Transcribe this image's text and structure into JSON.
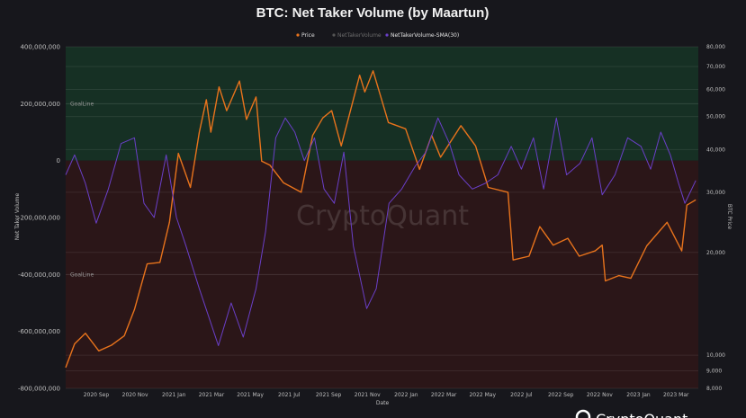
{
  "chart_data": {
    "type": "line",
    "title": "BTC: Net Taker Volume (by Maartun)",
    "xlabel": "Date",
    "ylabel_left": "Net Taker Volume",
    "ylabel_right": "BTC Price",
    "watermark": "CryptoQuant",
    "brand": "CryptoQuant",
    "legend": [
      {
        "name": "Price",
        "color": "#e8731c",
        "active": true
      },
      {
        "name": "NetTakerVolume",
        "color": "#555555",
        "active": false
      },
      {
        "name": "NetTakerVolume-SMA(30)",
        "color": "#6a3fc8",
        "active": true
      }
    ],
    "x_ticks": [
      "2020 Sep",
      "2020 Nov",
      "2021 Jan",
      "2021 Mar",
      "2021 May",
      "2021 Jul",
      "2021 Sep",
      "2021 Nov",
      "2022 Jan",
      "2022 Mar",
      "2022 May",
      "2022 Jul",
      "2022 Sep",
      "2022 Nov",
      "2023 Jan",
      "2023 Mar"
    ],
    "x_range": [
      "2020-07-15",
      "2023-04-05"
    ],
    "left_axis": {
      "ylim": [
        -800000000,
        400000000
      ],
      "ticks": [
        400000000,
        200000000,
        0,
        -200000000,
        -400000000,
        -600000000,
        -800000000
      ],
      "tick_labels": [
        "400,000,000",
        "200,000,000",
        "0",
        "-200,000,000",
        "-400,000,000",
        "-600,000,000",
        "-800,000,000"
      ]
    },
    "right_axis": {
      "scale": "log",
      "ylim": [
        8000,
        80000
      ],
      "ticks": [
        80000,
        70000,
        60000,
        50000,
        40000,
        30000,
        20000,
        10000,
        9000,
        8000
      ],
      "tick_labels": [
        "80,000",
        "70,000",
        "60,000",
        "50,000",
        "40,000",
        "30,000",
        "20,000",
        "10,000",
        "9,000",
        "8,000"
      ]
    },
    "goal_lines": [
      {
        "label": "GoalLine",
        "value": 200000000
      },
      {
        "label": "GoalLine",
        "value": -400000000
      }
    ],
    "zones": [
      {
        "from": 0,
        "to": 400000000,
        "color": "#163024"
      },
      {
        "from": -800000000,
        "to": 0,
        "color": "#2b1618"
      }
    ],
    "series": [
      {
        "name": "Price",
        "axis": "right",
        "color": "#e8731c",
        "points": [
          [
            "2020-07-15",
            9200
          ],
          [
            "2020-07-29",
            10800
          ],
          [
            "2020-08-15",
            11600
          ],
          [
            "2020-09-05",
            10300
          ],
          [
            "2020-09-25",
            10700
          ],
          [
            "2020-10-15",
            11400
          ],
          [
            "2020-10-31",
            13600
          ],
          [
            "2020-11-20",
            18500
          ],
          [
            "2020-12-10",
            18700
          ],
          [
            "2020-12-25",
            24500
          ],
          [
            "2021-01-08",
            39000
          ],
          [
            "2021-01-27",
            31000
          ],
          [
            "2021-02-10",
            45000
          ],
          [
            "2021-02-21",
            56000
          ],
          [
            "2021-02-28",
            45000
          ],
          [
            "2021-03-13",
            61000
          ],
          [
            "2021-03-25",
            52000
          ],
          [
            "2021-04-14",
            63500
          ],
          [
            "2021-04-25",
            49000
          ],
          [
            "2021-05-10",
            57000
          ],
          [
            "2021-05-19",
            37000
          ],
          [
            "2021-06-01",
            36000
          ],
          [
            "2021-06-22",
            32000
          ],
          [
            "2021-07-20",
            30000
          ],
          [
            "2021-08-07",
            44000
          ],
          [
            "2021-08-23",
            49500
          ],
          [
            "2021-09-06",
            52000
          ],
          [
            "2021-09-21",
            41000
          ],
          [
            "2021-10-20",
            66000
          ],
          [
            "2021-10-28",
            59000
          ],
          [
            "2021-11-10",
            68000
          ],
          [
            "2021-11-26",
            54000
          ],
          [
            "2021-12-04",
            48000
          ],
          [
            "2021-12-31",
            46000
          ],
          [
            "2022-01-22",
            35000
          ],
          [
            "2022-02-10",
            44000
          ],
          [
            "2022-02-24",
            38000
          ],
          [
            "2022-03-28",
            47000
          ],
          [
            "2022-04-20",
            41000
          ],
          [
            "2022-05-10",
            31000
          ],
          [
            "2022-06-10",
            30000
          ],
          [
            "2022-06-18",
            19000
          ],
          [
            "2022-07-13",
            19500
          ],
          [
            "2022-07-30",
            23800
          ],
          [
            "2022-08-20",
            21000
          ],
          [
            "2022-09-12",
            22000
          ],
          [
            "2022-09-30",
            19500
          ],
          [
            "2022-10-25",
            20200
          ],
          [
            "2022-11-05",
            21000
          ],
          [
            "2022-11-10",
            16500
          ],
          [
            "2022-12-01",
            17100
          ],
          [
            "2022-12-20",
            16800
          ],
          [
            "2023-01-14",
            20900
          ],
          [
            "2023-02-15",
            24500
          ],
          [
            "2023-03-10",
            20200
          ],
          [
            "2023-03-18",
            27500
          ],
          [
            "2023-04-01",
            28500
          ]
        ]
      },
      {
        "name": "NetTakerVolume-SMA(30)",
        "axis": "left",
        "color": "#6a3fc8",
        "points": [
          [
            "2020-07-15",
            -50000000
          ],
          [
            "2020-07-29",
            20000000
          ],
          [
            "2020-08-15",
            -80000000
          ],
          [
            "2020-09-01",
            -220000000
          ],
          [
            "2020-09-20",
            -100000000
          ],
          [
            "2020-10-10",
            60000000
          ],
          [
            "2020-10-31",
            80000000
          ],
          [
            "2020-11-15",
            -150000000
          ],
          [
            "2020-12-01",
            -200000000
          ],
          [
            "2020-12-20",
            20000000
          ],
          [
            "2021-01-05",
            -200000000
          ],
          [
            "2021-01-20",
            -300000000
          ],
          [
            "2021-02-10",
            -450000000
          ],
          [
            "2021-02-25",
            -550000000
          ],
          [
            "2021-03-12",
            -650000000
          ],
          [
            "2021-04-01",
            -500000000
          ],
          [
            "2021-04-20",
            -620000000
          ],
          [
            "2021-05-10",
            -450000000
          ],
          [
            "2021-05-25",
            -250000000
          ],
          [
            "2021-06-10",
            80000000
          ],
          [
            "2021-06-25",
            150000000
          ],
          [
            "2021-07-10",
            100000000
          ],
          [
            "2021-07-25",
            0
          ],
          [
            "2021-08-10",
            80000000
          ],
          [
            "2021-08-25",
            -100000000
          ],
          [
            "2021-09-10",
            -150000000
          ],
          [
            "2021-09-25",
            30000000
          ],
          [
            "2021-10-10",
            -300000000
          ],
          [
            "2021-10-31",
            -520000000
          ],
          [
            "2021-11-15",
            -450000000
          ],
          [
            "2021-12-05",
            -150000000
          ],
          [
            "2021-12-25",
            -100000000
          ],
          [
            "2022-01-15",
            -20000000
          ],
          [
            "2022-02-01",
            30000000
          ],
          [
            "2022-02-20",
            150000000
          ],
          [
            "2022-03-10",
            60000000
          ],
          [
            "2022-03-25",
            -50000000
          ],
          [
            "2022-04-15",
            -100000000
          ],
          [
            "2022-05-05",
            -80000000
          ],
          [
            "2022-05-25",
            -50000000
          ],
          [
            "2022-06-15",
            50000000
          ],
          [
            "2022-07-01",
            -30000000
          ],
          [
            "2022-07-20",
            80000000
          ],
          [
            "2022-08-05",
            -100000000
          ],
          [
            "2022-08-25",
            150000000
          ],
          [
            "2022-09-10",
            -50000000
          ],
          [
            "2022-10-01",
            -10000000
          ],
          [
            "2022-10-20",
            80000000
          ],
          [
            "2022-11-05",
            -120000000
          ],
          [
            "2022-11-25",
            -50000000
          ],
          [
            "2022-12-15",
            80000000
          ],
          [
            "2023-01-05",
            50000000
          ],
          [
            "2023-01-20",
            -30000000
          ],
          [
            "2023-02-05",
            100000000
          ],
          [
            "2023-02-20",
            20000000
          ],
          [
            "2023-03-05",
            -80000000
          ],
          [
            "2023-03-15",
            -150000000
          ],
          [
            "2023-04-01",
            -70000000
          ]
        ]
      }
    ]
  }
}
